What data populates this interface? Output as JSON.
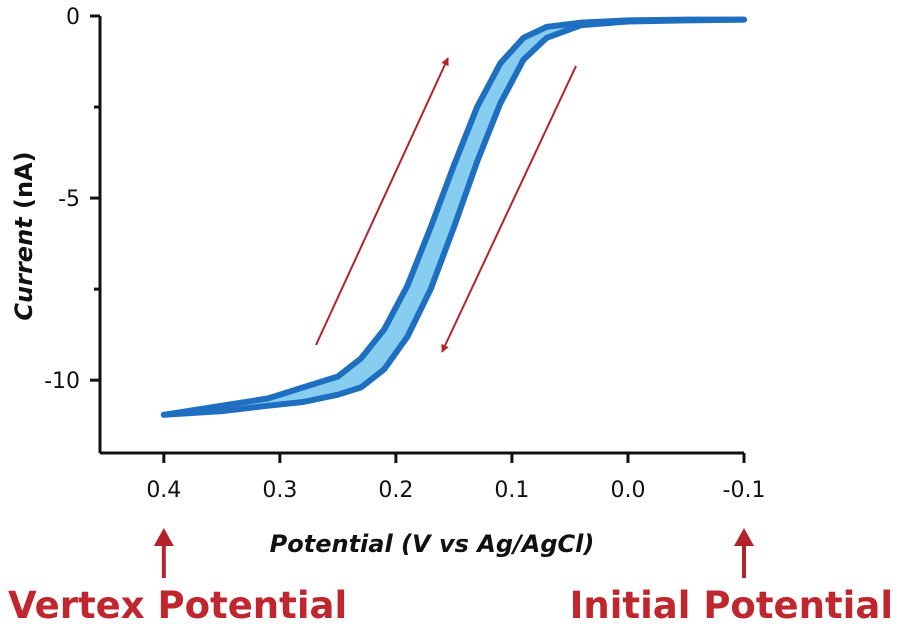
{
  "chart_data": {
    "type": "line",
    "xlabel_italic": "Potential",
    "xlabel_rest": " (V vs Ag/AgCl)",
    "ylabel_italic": "Current",
    "ylabel_rest": " (nA)",
    "xlim": [
      0.455,
      -0.1
    ],
    "ylim": [
      -12,
      0
    ],
    "x_ticks": [
      0.4,
      0.3,
      0.2,
      0.1,
      0.0,
      -0.1
    ],
    "x_tick_labels": [
      "0.4",
      "0.3",
      "0.2",
      "0.1",
      "0.0",
      "-0.1"
    ],
    "y_ticks": [
      0,
      -5,
      -10
    ],
    "y_tick_labels": [
      "0",
      "-5",
      "-10"
    ],
    "y_minor_ticks": [
      -2.5,
      -7.5
    ],
    "series": [
      {
        "scan": "forward",
        "x": [
          -0.1,
          -0.05,
          0.0,
          0.04,
          0.07,
          0.09,
          0.11,
          0.13,
          0.15,
          0.17,
          0.19,
          0.21,
          0.23,
          0.25,
          0.28,
          0.31,
          0.35,
          0.4
        ],
        "y": [
          -0.1,
          -0.12,
          -0.15,
          -0.25,
          -0.6,
          -1.2,
          -2.4,
          -4.0,
          -5.8,
          -7.5,
          -8.8,
          -9.7,
          -10.2,
          -10.4,
          -10.6,
          -10.7,
          -10.85,
          -10.95
        ]
      },
      {
        "scan": "reverse",
        "x": [
          0.4,
          0.35,
          0.31,
          0.28,
          0.25,
          0.23,
          0.21,
          0.19,
          0.17,
          0.15,
          0.13,
          0.11,
          0.09,
          0.07,
          0.04,
          0.0,
          -0.05,
          -0.1
        ],
        "y": [
          -10.95,
          -10.7,
          -10.5,
          -10.2,
          -9.9,
          -9.4,
          -8.6,
          -7.4,
          -5.8,
          -4.1,
          -2.5,
          -1.3,
          -0.6,
          -0.3,
          -0.18,
          -0.12,
          -0.1,
          -0.1
        ]
      }
    ],
    "line_color": "#1f6fc0",
    "fill_color": "#87cdf0",
    "arrow_color": "#b4222a",
    "annotations": [
      {
        "label": "Vertex Potential",
        "at_x": 0.4
      },
      {
        "label": "Initial Potential",
        "at_x": -0.1
      }
    ]
  }
}
